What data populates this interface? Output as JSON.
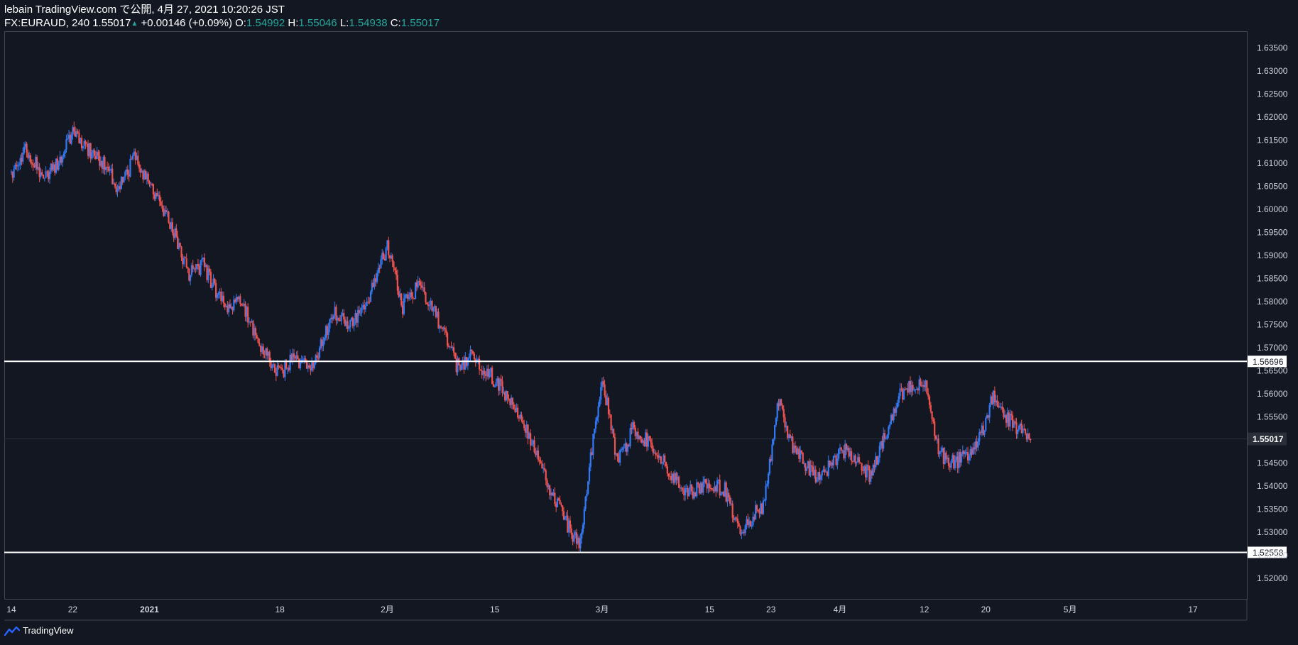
{
  "header": {
    "published": "lebain TradingView.com で公開, 4月 27, 2021 10:20:26 JST",
    "symbol": "FX:EURAUD, 240",
    "last": "1.55017",
    "change": "+0.00146 (+0.09%)",
    "o_label": "O:",
    "o": "1.54992",
    "h_label": "H:",
    "h": "1.55046",
    "l_label": "L:",
    "l": "1.54938",
    "c_label": "C:",
    "c": "1.55017"
  },
  "footer": {
    "brand": "TradingView"
  },
  "colors": {
    "background": "#131722",
    "up": "#3179f5",
    "down": "#ef5350",
    "level_line": "#ffffff",
    "axis_text": "#d1d4dc"
  },
  "chart_data": {
    "type": "line",
    "title": "",
    "xlabel": "",
    "ylabel": "",
    "ylim": [
      1.5155,
      1.6385
    ],
    "y_ticks": [
      1.52,
      1.525,
      1.53,
      1.535,
      1.54,
      1.545,
      1.55,
      1.555,
      1.56,
      1.565,
      1.57,
      1.575,
      1.58,
      1.585,
      1.59,
      1.595,
      1.6,
      1.605,
      1.61,
      1.615,
      1.62,
      1.625,
      1.63,
      1.635
    ],
    "x_tick_labels": [
      {
        "date": "2020-12-14",
        "label": "14"
      },
      {
        "date": "2020-12-22",
        "label": "22"
      },
      {
        "date": "2021-01-01",
        "label": "2021"
      },
      {
        "date": "2021-01-18",
        "label": "18"
      },
      {
        "date": "2021-02-01",
        "label": "2月"
      },
      {
        "date": "2021-02-15",
        "label": "15"
      },
      {
        "date": "2021-03-01",
        "label": "3月"
      },
      {
        "date": "2021-03-15",
        "label": "15"
      },
      {
        "date": "2021-03-23",
        "label": "23"
      },
      {
        "date": "2021-04-01",
        "label": "4月"
      },
      {
        "date": "2021-04-12",
        "label": "12"
      },
      {
        "date": "2021-04-20",
        "label": "20"
      },
      {
        "date": "2021-05-01",
        "label": "5月"
      },
      {
        "date": "2021-05-17",
        "label": "17"
      }
    ],
    "x": [
      "2020-12-14",
      "2020-12-16",
      "2020-12-18",
      "2020-12-20",
      "2020-12-22",
      "2020-12-24",
      "2020-12-26",
      "2020-12-28",
      "2020-12-30",
      "2021-01-01",
      "2021-01-04",
      "2021-01-06",
      "2021-01-08",
      "2021-01-11",
      "2021-01-13",
      "2021-01-15",
      "2021-01-18",
      "2021-01-20",
      "2021-01-22",
      "2021-01-25",
      "2021-01-27",
      "2021-01-29",
      "2021-02-01",
      "2021-02-03",
      "2021-02-05",
      "2021-02-08",
      "2021-02-10",
      "2021-02-12",
      "2021-02-15",
      "2021-02-17",
      "2021-02-19",
      "2021-02-22",
      "2021-02-24",
      "2021-02-26",
      "2021-03-01",
      "2021-03-03",
      "2021-03-05",
      "2021-03-08",
      "2021-03-10",
      "2021-03-12",
      "2021-03-15",
      "2021-03-17",
      "2021-03-19",
      "2021-03-22",
      "2021-03-24",
      "2021-03-26",
      "2021-03-29",
      "2021-03-31",
      "2021-04-02",
      "2021-04-05",
      "2021-04-07",
      "2021-04-09",
      "2021-04-12",
      "2021-04-14",
      "2021-04-16",
      "2021-04-19",
      "2021-04-21",
      "2021-04-23",
      "2021-04-26"
    ],
    "series": [
      {
        "values": [
          1.608,
          1.613,
          1.607,
          1.61,
          1.617,
          1.613,
          1.61,
          1.604,
          1.611,
          1.605,
          1.596,
          1.586,
          1.588,
          1.578,
          1.58,
          1.572,
          1.564,
          1.568,
          1.565,
          1.578,
          1.574,
          1.578,
          1.592,
          1.579,
          1.583,
          1.575,
          1.566,
          1.568,
          1.563,
          1.559,
          1.553,
          1.54,
          1.533,
          1.527,
          1.564,
          1.545,
          1.552,
          1.548,
          1.542,
          1.538,
          1.541,
          1.539,
          1.53,
          1.536,
          1.558,
          1.548,
          1.541,
          1.545,
          1.548,
          1.542,
          1.552,
          1.56,
          1.563,
          1.547,
          1.545,
          1.549,
          1.56,
          1.554,
          1.55
        ]
      }
    ],
    "levels": [
      "1.56696",
      "1.52558"
    ],
    "last_price_label": "1.55017"
  }
}
